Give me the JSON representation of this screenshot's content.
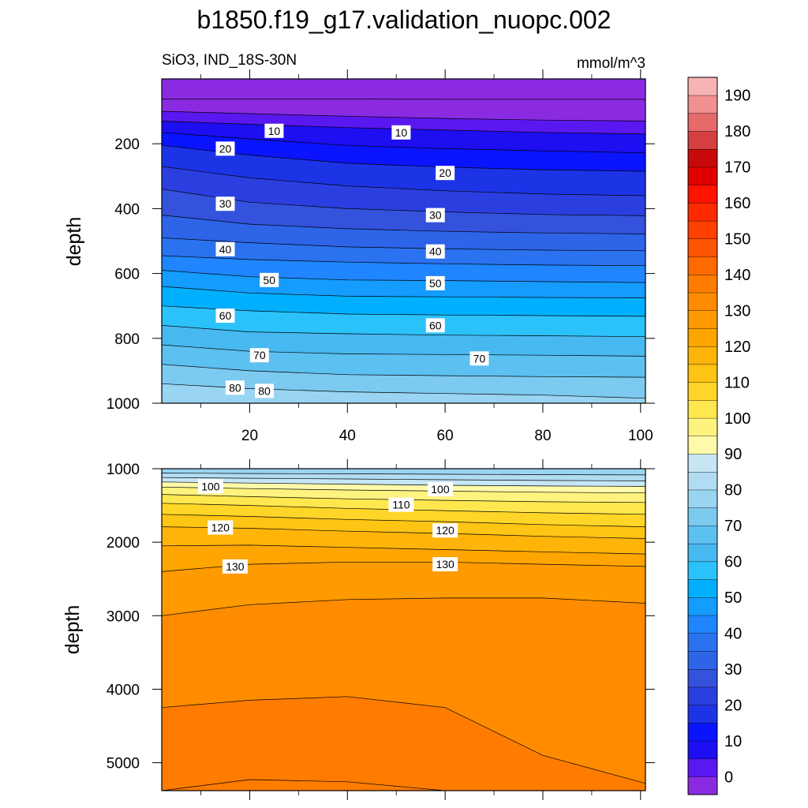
{
  "chart_data": {
    "type": "contour",
    "title": "b1850.f19_g17.validation_nuopc.002",
    "variable_label": "SiO3, IND_18S-30N",
    "units": "mmol/m^3",
    "ylabel": "depth",
    "xlabel": "",
    "xlim": [
      2,
      101
    ],
    "x_ticks": [
      "20",
      "40",
      "60",
      "80",
      "100"
    ],
    "panels": [
      {
        "ylim": [
          1000,
          0
        ],
        "y_ticks": [
          "200",
          "400",
          "600",
          "800",
          "1000"
        ],
        "x_tick_labels_shown": true,
        "isolines": [
          {
            "value": 0,
            "depth": [
              62,
              62,
              62,
              63,
              63,
              63
            ]
          },
          {
            "value": 5,
            "depth": [
              100,
              107,
              115,
              122,
              127,
              130
            ]
          },
          {
            "value": 10,
            "depth": [
              130,
              140,
              150,
              158,
              165,
              170
            ]
          },
          {
            "value": 15,
            "depth": [
              165,
              185,
              205,
              215,
              222,
              228
            ]
          },
          {
            "value": 20,
            "depth": [
              205,
              235,
              260,
              272,
              280,
              285
            ]
          },
          {
            "value": 25,
            "depth": [
              270,
              305,
              330,
              345,
              355,
              360
            ]
          },
          {
            "value": 30,
            "depth": [
              340,
              380,
              400,
              410,
              418,
              422
            ]
          },
          {
            "value": 35,
            "depth": [
              420,
              448,
              462,
              470,
              475,
              478
            ]
          },
          {
            "value": 40,
            "depth": [
              490,
              505,
              518,
              524,
              528,
              530
            ]
          },
          {
            "value": 45,
            "depth": [
              545,
              557,
              565,
              570,
              574,
              576
            ]
          },
          {
            "value": 50,
            "depth": [
              590,
              610,
              620,
              622,
              625,
              628
            ]
          },
          {
            "value": 55,
            "depth": [
              640,
              660,
              670,
              672,
              674,
              675
            ]
          },
          {
            "value": 60,
            "depth": [
              700,
              715,
              725,
              728,
              730,
              732
            ]
          },
          {
            "value": 65,
            "depth": [
              760,
              780,
              786,
              790,
              792,
              795
            ]
          },
          {
            "value": 70,
            "depth": [
              820,
              840,
              848,
              850,
              852,
              855
            ]
          },
          {
            "value": 75,
            "depth": [
              880,
              900,
              912,
              915,
              918,
              920
            ]
          },
          {
            "value": 80,
            "depth": [
              940,
              955,
              965,
              970,
              975,
              985
            ]
          }
        ],
        "labels": [
          {
            "text": "10",
            "x": 25,
            "depth": 160
          },
          {
            "text": "10",
            "x": 51,
            "depth": 165
          },
          {
            "text": "20",
            "x": 15,
            "depth": 215
          },
          {
            "text": "20",
            "x": 60,
            "depth": 290
          },
          {
            "text": "30",
            "x": 15,
            "depth": 385
          },
          {
            "text": "30",
            "x": 58,
            "depth": 420
          },
          {
            "text": "40",
            "x": 15,
            "depth": 525
          },
          {
            "text": "40",
            "x": 58,
            "depth": 532
          },
          {
            "text": "50",
            "x": 24,
            "depth": 620
          },
          {
            "text": "50",
            "x": 58,
            "depth": 630
          },
          {
            "text": "60",
            "x": 15,
            "depth": 730
          },
          {
            "text": "60",
            "x": 58,
            "depth": 760
          },
          {
            "text": "70",
            "x": 22,
            "depth": 852
          },
          {
            "text": "70",
            "x": 67,
            "depth": 862
          },
          {
            "text": "80",
            "x": 17,
            "depth": 952
          },
          {
            "text": "80",
            "x": 23,
            "depth": 962
          }
        ]
      },
      {
        "ylim": [
          5380,
          1000
        ],
        "y_ticks": [
          "1000",
          "2000",
          "3000",
          "4000",
          "5000"
        ],
        "x_tick_labels_shown": false,
        "isolines": [
          {
            "value": 85,
            "depth": [
              1060,
              1065,
              1070,
              1075,
              1080,
              1085
            ]
          },
          {
            "value": 90,
            "depth": [
              1120,
              1130,
              1140,
              1150,
              1160,
              1165
            ]
          },
          {
            "value": 95,
            "depth": [
              1180,
              1195,
              1210,
              1225,
              1235,
              1240
            ]
          },
          {
            "value": 100,
            "depth": [
              1250,
              1270,
              1290,
              1305,
              1320,
              1330
            ]
          },
          {
            "value": 105,
            "depth": [
              1350,
              1380,
              1410,
              1430,
              1450,
              1460
            ]
          },
          {
            "value": 110,
            "depth": [
              1470,
              1500,
              1540,
              1570,
              1600,
              1620
            ]
          },
          {
            "value": 115,
            "depth": [
              1620,
              1650,
              1690,
              1720,
              1760,
              1790
            ]
          },
          {
            "value": 120,
            "depth": [
              1790,
              1810,
              1850,
              1880,
              1920,
              1950
            ]
          },
          {
            "value": 125,
            "depth": [
              2050,
              2040,
              2070,
              2100,
              2130,
              2160
            ]
          },
          {
            "value": 130,
            "depth": [
              2400,
              2300,
              2270,
              2270,
              2300,
              2330
            ]
          },
          {
            "value": 135,
            "depth": [
              3000,
              2850,
              2780,
              2760,
              2760,
              2830
            ]
          },
          {
            "value": 140,
            "depth": [
              4250,
              4150,
              4100,
              4250,
              4900,
              5280
            ]
          },
          {
            "value": 140,
            "depth": [
              5380,
              5230,
              5260,
              5380,
              5380,
              5380
            ]
          }
        ],
        "labels": [
          {
            "text": "100",
            "x": 12,
            "depth": 1240
          },
          {
            "text": "100",
            "x": 59,
            "depth": 1280
          },
          {
            "text": "110",
            "x": 51,
            "depth": 1490
          },
          {
            "text": "120",
            "x": 14,
            "depth": 1800
          },
          {
            "text": "120",
            "x": 60,
            "depth": 1840
          },
          {
            "text": "130",
            "x": 17,
            "depth": 2330
          },
          {
            "text": "130",
            "x": 60,
            "depth": 2300
          }
        ]
      }
    ],
    "colorbar": {
      "levels": [
        "0",
        "10",
        "20",
        "30",
        "40",
        "50",
        "60",
        "70",
        "80",
        "90",
        "100",
        "110",
        "120",
        "130",
        "140",
        "150",
        "160",
        "170",
        "180",
        "190"
      ],
      "colors": [
        "#8a2be2",
        "#5a18f0",
        "#1e0ef2",
        "#0a14ff",
        "#1c34e6",
        "#2b3fe0",
        "#3452dc",
        "#2d64e8",
        "#2a72f0",
        "#1f86ff",
        "#149cff",
        "#00b0ff",
        "#2bc2fb",
        "#48b8f0",
        "#5cc0f0",
        "#7ccaf0",
        "#99d4f2",
        "#b2dcf2",
        "#c6e6f6",
        "#fffaaa",
        "#fff37f",
        "#ffe84f",
        "#ffd628",
        "#ffc514",
        "#ffb40a",
        "#ffa500",
        "#ff9a00",
        "#ff8c00",
        "#ff7c00",
        "#ff6a00",
        "#ff5500",
        "#ff4000",
        "#ff2a00",
        "#ff1200",
        "#e00000",
        "#c80a0a",
        "#d44040",
        "#e66a6a",
        "#f09090",
        "#f8b4b4"
      ]
    }
  }
}
